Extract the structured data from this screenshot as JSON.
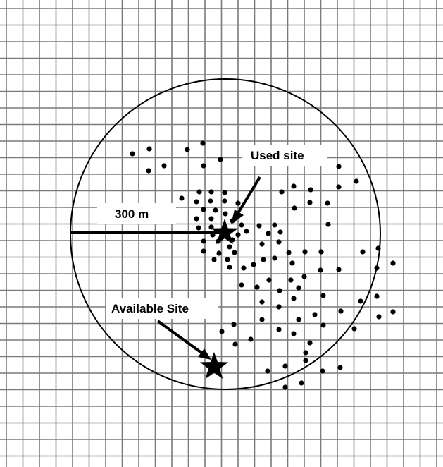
{
  "labels": {
    "used_site": "Used site",
    "radius": "300 m",
    "available_site": "Available Site"
  },
  "colors": {
    "grid": "#7a7a7a",
    "ink": "#000000",
    "background": "#ffffff"
  },
  "icons": {
    "used_site_marker": "star-icon",
    "available_site_marker": "star-icon"
  }
}
